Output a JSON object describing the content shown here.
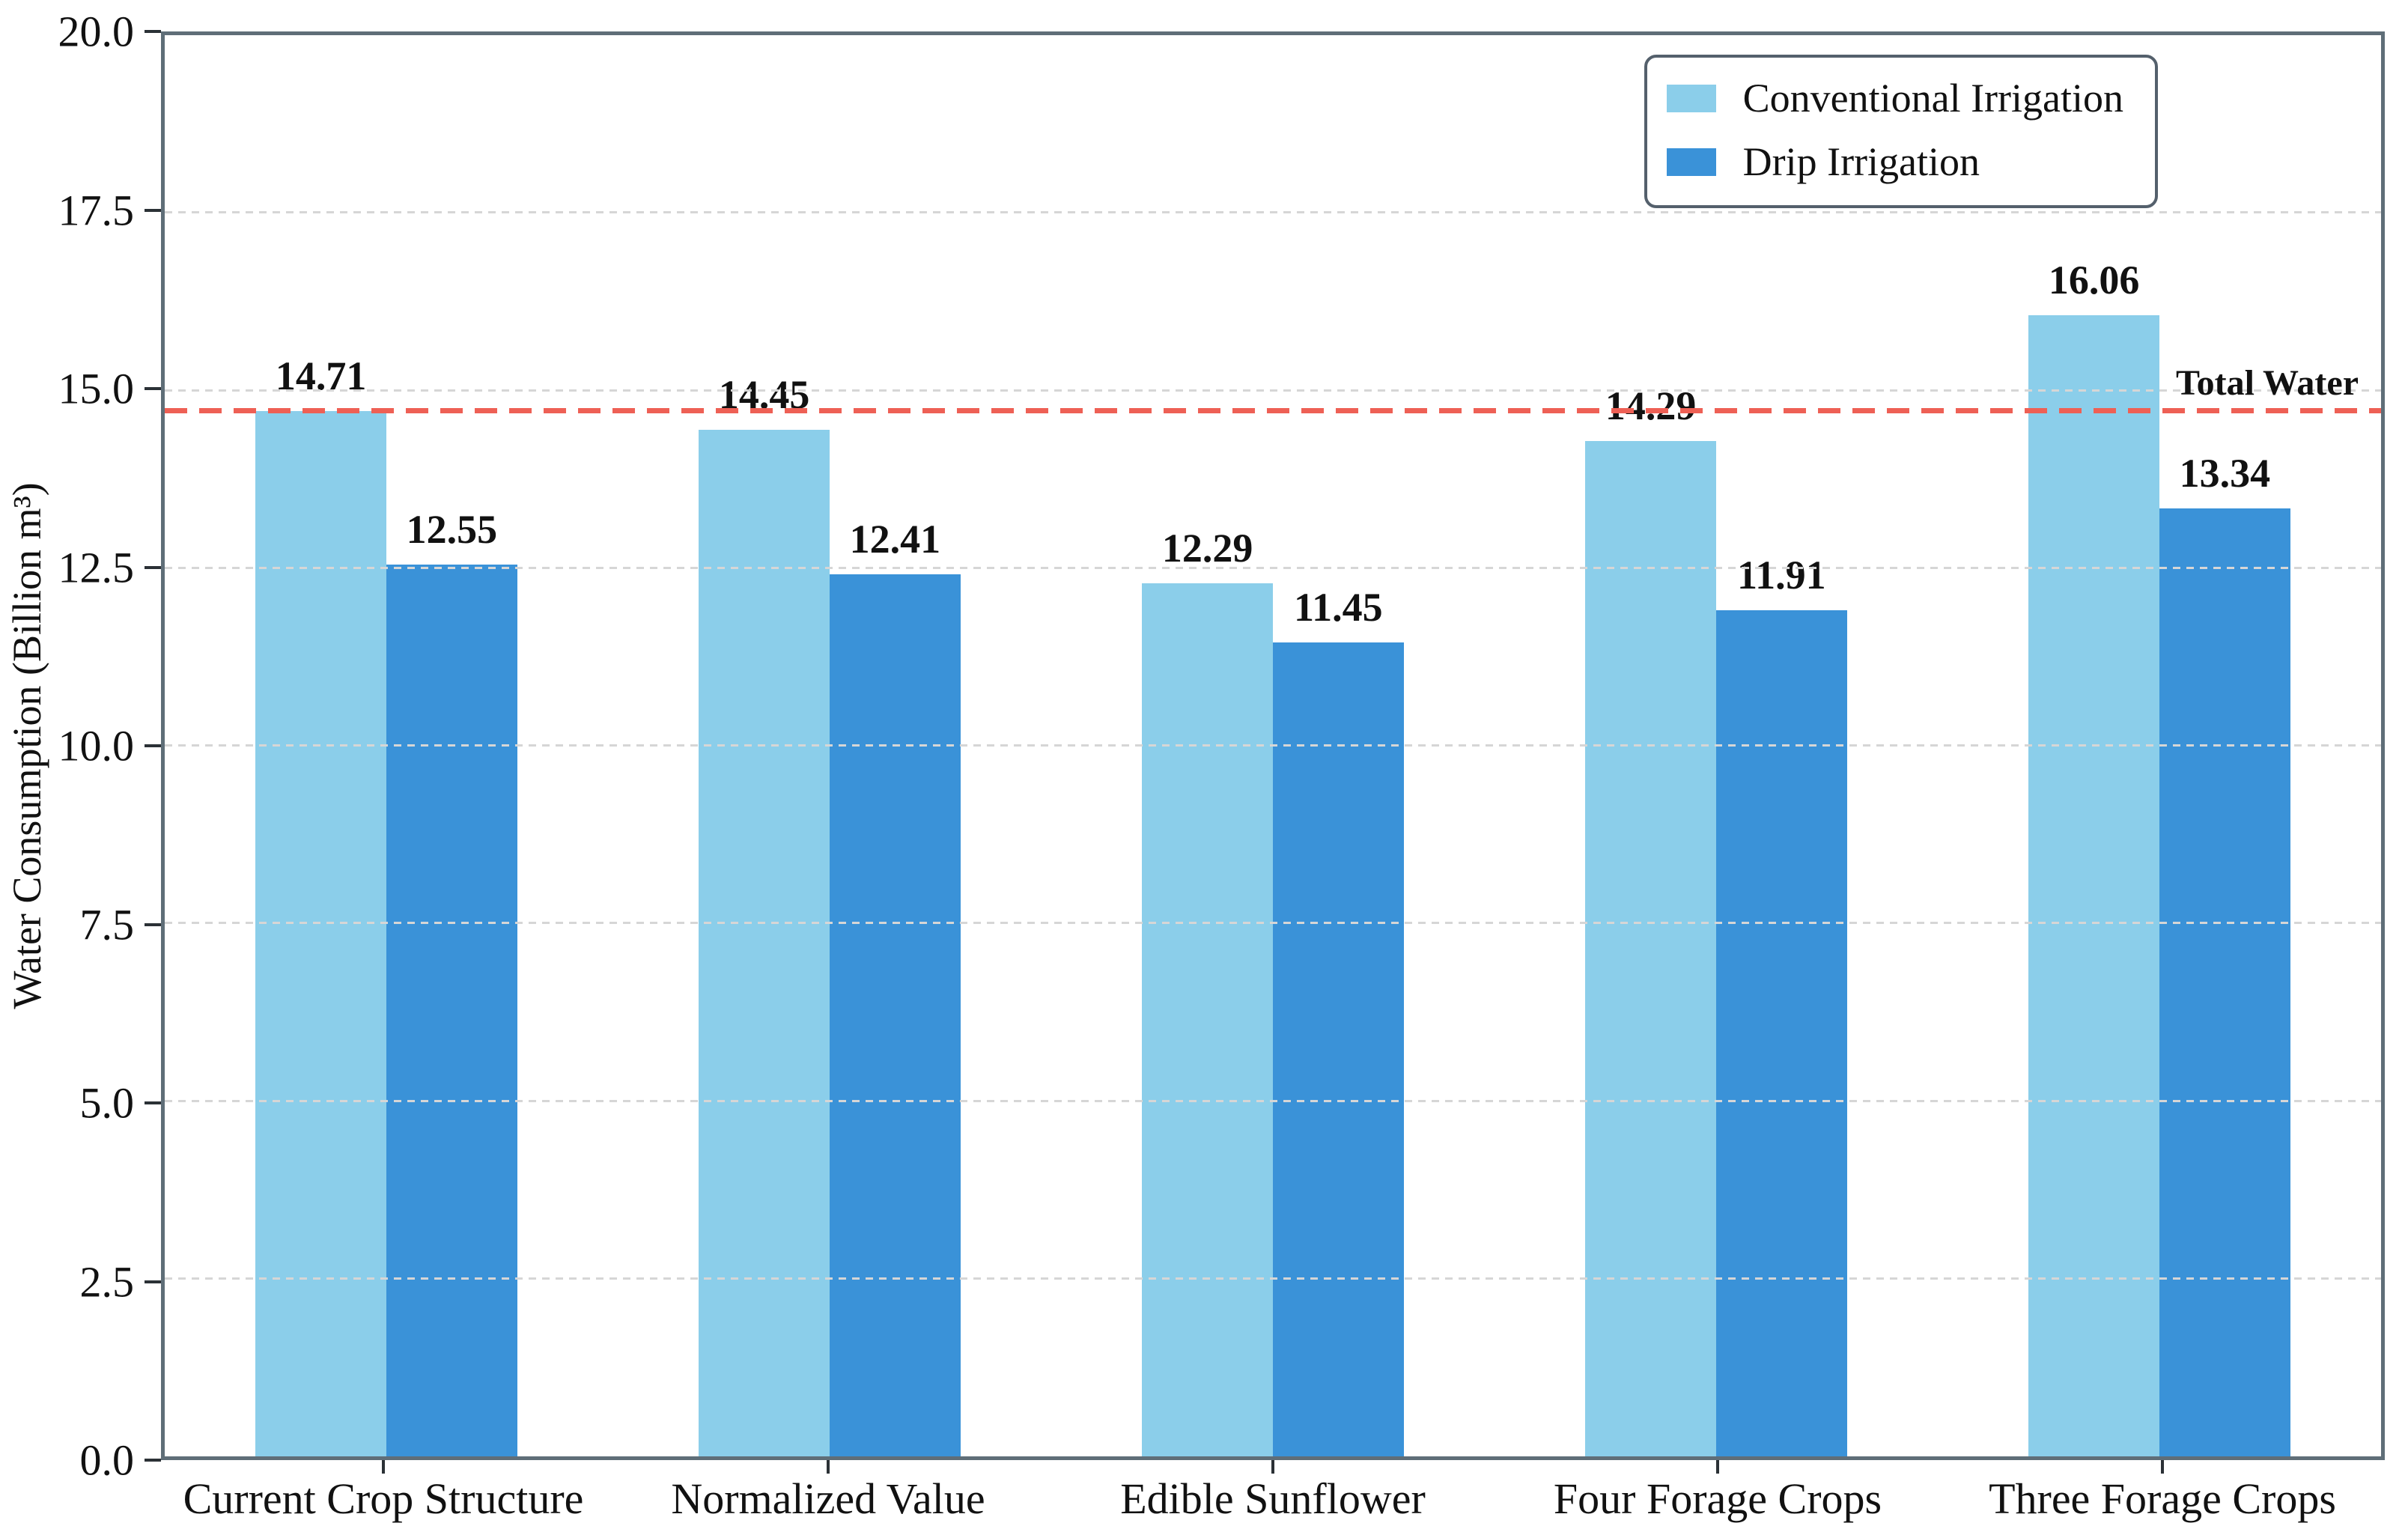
{
  "chart_data": {
    "type": "bar",
    "title": "",
    "categories": [
      "Current Crop Structure",
      "Normalized Value",
      "Edible Sunflower",
      "Four Forage Crops",
      "Three Forage Crops"
    ],
    "series": [
      {
        "name": "Conventional Irrigation",
        "color": "#8BCEEA",
        "values": [
          14.71,
          14.45,
          12.29,
          14.29,
          16.06
        ]
      },
      {
        "name": "Drip Irrigation",
        "color": "#3A92D8",
        "values": [
          12.55,
          12.41,
          11.45,
          11.91,
          13.34
        ]
      }
    ],
    "xlabel": "",
    "ylabel": "Water Consumption (Billion m³)",
    "ylim": [
      0,
      20
    ],
    "ytick_labels": [
      "0.0",
      "2.5",
      "5.0",
      "7.5",
      "10.0",
      "12.5",
      "15.0",
      "17.5",
      "20.0"
    ],
    "grid": true,
    "grid_style": "dashed",
    "legend_position": "upper right",
    "reference_line": {
      "value": 14.71,
      "label": "Total Water",
      "color": "#ee6055",
      "style": "dashed"
    },
    "colors": {
      "grid": "#d6d6d6",
      "spine": "#5f6e78",
      "background": "#ffffff",
      "text": "#111111"
    }
  }
}
